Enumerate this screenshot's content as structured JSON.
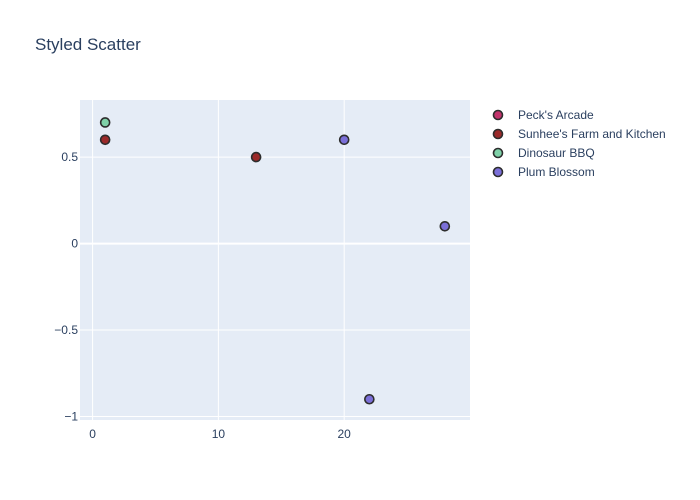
{
  "chart_data": {
    "type": "scatter",
    "title": "Styled Scatter",
    "xlabel": "",
    "ylabel": "",
    "xlim": [
      -1,
      30
    ],
    "ylim": [
      -1.02,
      0.83
    ],
    "xticks": [
      0,
      10,
      20
    ],
    "yticks": [
      -1,
      -0.5,
      0,
      0.5
    ],
    "ytick_labels": [
      "−1",
      "−0.5",
      "0",
      "0.5"
    ],
    "grid": true,
    "legend_position": "right",
    "colors": {
      "plot_bg": "#e5ecf6",
      "grid": "#ffffff",
      "marker_outline": "#2d2d2d"
    },
    "series": [
      {
        "name": "Peck's Arcade",
        "color": "#c2336b",
        "points": []
      },
      {
        "name": "Sunhee's Farm and Kitchen",
        "color": "#9b2a2a",
        "points": [
          [
            1,
            0.6
          ],
          [
            13,
            0.5
          ]
        ]
      },
      {
        "name": "Dinosaur BBQ",
        "color": "#7fd1a8",
        "points": [
          [
            1,
            0.7
          ]
        ]
      },
      {
        "name": "Plum Blossom",
        "color": "#7b6fd8",
        "points": [
          [
            20,
            0.6
          ],
          [
            22,
            -0.9
          ],
          [
            28,
            0.1
          ]
        ]
      }
    ]
  }
}
